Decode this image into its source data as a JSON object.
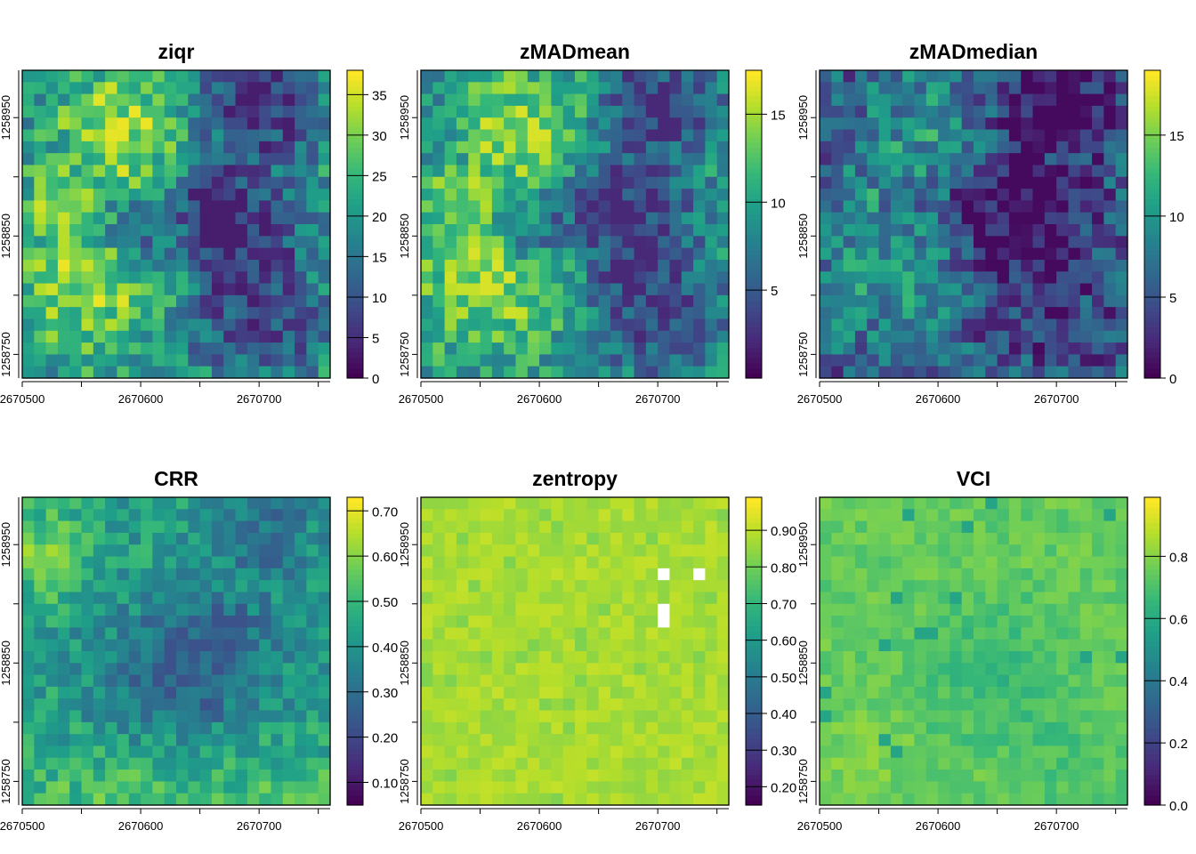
{
  "figure": {
    "panels": [
      {
        "title": "ziqr"
      },
      {
        "title": "zMADmean"
      },
      {
        "title": "zMADmedian"
      },
      {
        "title": "CRR"
      },
      {
        "title": "zentropy"
      },
      {
        "title": "VCI"
      }
    ]
  },
  "chart_data": [
    {
      "type": "heatmap",
      "title": "ziqr",
      "colormap": "viridis",
      "pattern": "metric",
      "x_ticks": [
        2670500,
        2670600,
        2670700
      ],
      "x_tick_labels": [
        "2670500",
        "2670600",
        "2670700"
      ],
      "y_ticks": [
        1258750,
        1258850,
        1258950
      ],
      "y_tick_labels": [
        "1258750",
        "1258850",
        "1258950"
      ],
      "xlim": [
        2670500,
        2670760
      ],
      "ylim": [
        1258730,
        1258990
      ],
      "grid": false,
      "legend": "colorbar right",
      "value_range": [
        0,
        38
      ],
      "colorbar_ticks": [
        0,
        5,
        10,
        15,
        20,
        25,
        30,
        35
      ],
      "colorbar_labels": [
        "0",
        "5",
        "10",
        "15",
        "20",
        "25",
        "30",
        "35"
      ],
      "value_low": 3,
      "value_high": 37,
      "seed": 11
    },
    {
      "type": "heatmap",
      "title": "zMADmean",
      "colormap": "viridis",
      "pattern": "metric",
      "x_ticks": [
        2670500,
        2670600,
        2670700
      ],
      "x_tick_labels": [
        "2670500",
        "2670600",
        "2670700"
      ],
      "y_ticks": [
        1258750,
        1258850,
        1258950
      ],
      "y_tick_labels": [
        "1258750",
        "1258850",
        "1258950"
      ],
      "xlim": [
        2670500,
        2670760
      ],
      "ylim": [
        1258730,
        1258990
      ],
      "grid": false,
      "legend": "colorbar right",
      "value_range": [
        0,
        17.5
      ],
      "colorbar_ticks": [
        5,
        10,
        15
      ],
      "colorbar_labels": [
        "5",
        "10",
        "15"
      ],
      "value_low": 2,
      "value_high": 16.5,
      "seed": 23
    },
    {
      "type": "heatmap",
      "title": "zMADmedian",
      "colormap": "viridis",
      "pattern": "median",
      "x_ticks": [
        2670500,
        2670600,
        2670700
      ],
      "x_tick_labels": [
        "2670500",
        "2670600",
        "2670700"
      ],
      "y_ticks": [
        1258750,
        1258850,
        1258950
      ],
      "y_tick_labels": [
        "1258750",
        "1258850",
        "1258950"
      ],
      "xlim": [
        2670500,
        2670760
      ],
      "ylim": [
        1258730,
        1258990
      ],
      "grid": false,
      "legend": "colorbar right",
      "value_range": [
        0,
        19
      ],
      "colorbar_ticks": [
        0,
        5,
        10,
        15
      ],
      "colorbar_labels": [
        "0",
        "5",
        "10",
        "15"
      ],
      "value_low": 0.5,
      "value_high": 15,
      "seed": 37
    },
    {
      "type": "heatmap",
      "title": "CRR",
      "colormap": "viridis",
      "pattern": "crr",
      "x_ticks": [
        2670500,
        2670600,
        2670700
      ],
      "x_tick_labels": [
        "2670500",
        "2670600",
        "2670700"
      ],
      "y_ticks": [
        1258750,
        1258850,
        1258950
      ],
      "y_tick_labels": [
        "1258750",
        "1258850",
        "1258950"
      ],
      "xlim": [
        2670500,
        2670760
      ],
      "ylim": [
        1258730,
        1258990
      ],
      "grid": false,
      "legend": "colorbar right",
      "value_range": [
        0.05,
        0.73
      ],
      "colorbar_ticks": [
        0.1,
        0.2,
        0.3,
        0.4,
        0.5,
        0.6,
        0.7
      ],
      "colorbar_labels": [
        "0.10",
        "0.20",
        "0.30",
        "0.40",
        "0.50",
        "0.60",
        "0.70"
      ],
      "value_low": 0.22,
      "value_high": 0.68,
      "seed": 41
    },
    {
      "type": "heatmap",
      "title": "zentropy",
      "colormap": "viridis",
      "pattern": "flat",
      "x_ticks": [
        2670500,
        2670600,
        2670700
      ],
      "x_tick_labels": [
        "2670500",
        "2670600",
        "2670700"
      ],
      "y_ticks": [
        1258750,
        1258850,
        1258950
      ],
      "y_tick_labels": [
        "1258750",
        "1258850",
        "1258950"
      ],
      "xlim": [
        2670500,
        2670760
      ],
      "ylim": [
        1258730,
        1258990
      ],
      "grid": false,
      "legend": "colorbar right",
      "value_range": [
        0.15,
        0.99
      ],
      "colorbar_ticks": [
        0.2,
        0.3,
        0.4,
        0.5,
        0.6,
        0.7,
        0.8,
        0.9
      ],
      "colorbar_labels": [
        "0.20",
        "0.30",
        "0.40",
        "0.50",
        "0.60",
        "0.70",
        "0.80",
        "0.90"
      ],
      "value_low": 0.82,
      "value_high": 0.93,
      "seed": 53,
      "missing_cells": [
        [
          20,
          6
        ],
        [
          23,
          6
        ],
        [
          20,
          9
        ],
        [
          20,
          10
        ]
      ]
    },
    {
      "type": "heatmap",
      "title": "VCI",
      "colormap": "viridis",
      "pattern": "vci",
      "x_ticks": [
        2670500,
        2670600,
        2670700
      ],
      "x_tick_labels": [
        "2670500",
        "2670600",
        "2670700"
      ],
      "y_ticks": [
        1258750,
        1258850,
        1258950
      ],
      "y_tick_labels": [
        "1258750",
        "1258850",
        "1258950"
      ],
      "xlim": [
        2670500,
        2670760
      ],
      "ylim": [
        1258730,
        1258990
      ],
      "grid": false,
      "legend": "colorbar right",
      "value_range": [
        0,
        0.99
      ],
      "colorbar_ticks": [
        0.0,
        0.2,
        0.4,
        0.6,
        0.8
      ],
      "colorbar_labels": [
        "0.0",
        "0.2",
        "0.4",
        "0.6",
        "0.8"
      ],
      "value_low": 0.58,
      "value_high": 0.86,
      "seed": 67
    }
  ]
}
